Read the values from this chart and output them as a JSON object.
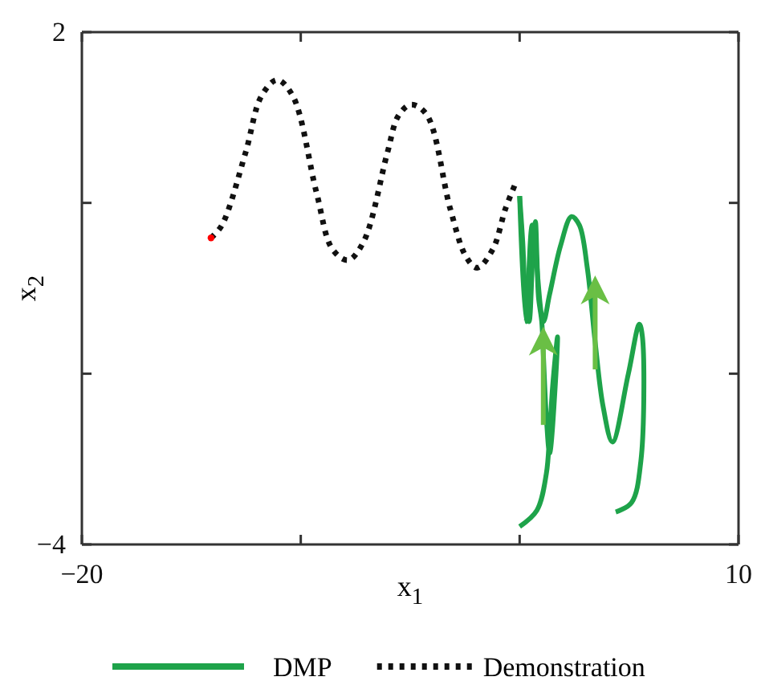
{
  "chart_data": {
    "type": "line",
    "xlabel": "x$_{1}$",
    "ylabel": "x$_{2}$",
    "xlim": [
      -20,
      10
    ],
    "ylim": [
      -4,
      2
    ],
    "xticks": [
      {
        "value": -20,
        "label": "−20"
      },
      {
        "value": -10,
        "label": null
      },
      {
        "value": 0,
        "label": null
      },
      {
        "value": 10,
        "label": "10"
      }
    ],
    "yticks": [
      {
        "value": -4,
        "label": "−4"
      },
      {
        "value": -2,
        "label": null
      },
      {
        "value": 0,
        "label": null
      },
      {
        "value": 2,
        "label": "2"
      }
    ],
    "grid": false,
    "legend": "bottom",
    "series": [
      {
        "name": "DMP",
        "color": "#1ea34a",
        "line_style": "solid",
        "x": [
          0,
          0.79,
          1.22,
          1.37,
          1.51,
          1.73,
          1.65,
          1.37,
          1.22,
          1.08,
          1.01,
          0.86,
          0.79,
          0.72,
          0.58,
          0.43,
          0.29,
          0.14,
          0
        ],
        "values": [
          -3.79,
          -3.6,
          -3.17,
          -2.7,
          -2.14,
          -1.57,
          -2.04,
          -2.93,
          -2.51,
          -1.76,
          -1.39,
          -1.1,
          -0.63,
          -0.22,
          -0.73,
          -1.39,
          -1.2,
          -0.45,
          0.08
        ]
      },
      {
        "color": "#1ea34a",
        "line_style": "solid",
        "x": [
          4.39,
          5.11,
          5.54,
          5.61,
          5.47,
          4.96,
          4.24,
          3.81,
          3.45,
          3.09,
          2.73,
          2.37,
          1.87,
          1.37,
          1.08,
          0.58,
          0.29,
          0
        ],
        "values": [
          -3.62,
          -3.51,
          -3.02,
          -1.57,
          -1.42,
          -2.01,
          -2.8,
          -2.38,
          -1.63,
          -0.76,
          -0.26,
          -0.16,
          -0.5,
          -1.07,
          -1.39,
          -0.26,
          -1.39,
          0.08
        ]
      },
      {
        "name": "Demonstration",
        "color": "#111111",
        "line_style": "dotted",
        "x": [
          -14.1,
          -13.6,
          -12.52,
          -11.8,
          -11.08,
          -10.36,
          -9.28,
          -8.56,
          -7.84,
          -7.12,
          -6.04,
          -5.54,
          -4.96,
          -4.24,
          -3.17,
          -2.45,
          -1.94,
          -1.22,
          -0.65,
          -0.22
        ],
        "values": [
          -0.41,
          -0.26,
          0.59,
          1.25,
          1.44,
          1.25,
          0.12,
          -0.54,
          -0.67,
          -0.45,
          0.59,
          1.02,
          1.15,
          1.03,
          -0.07,
          -0.63,
          -0.76,
          -0.54,
          -0.07,
          0.21
        ]
      },
      {
        "type": "scatter",
        "color": "#ff0000",
        "marker": "circle",
        "x": [
          -14.1
        ],
        "values": [
          -0.41
        ]
      }
    ]
  }
}
